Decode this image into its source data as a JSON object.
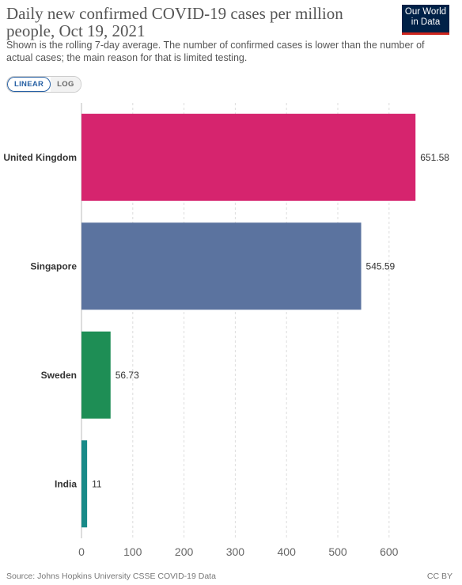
{
  "header": {
    "title": "Daily new confirmed COVID-19 cases per million people, Oct 19, 2021",
    "subtitle": "Shown is the rolling 7-day average. The number of confirmed cases is lower than the number of actual cases; the main reason for that is limited testing.",
    "logo_line1": "Our World",
    "logo_line2": "in Data"
  },
  "controls": {
    "linear_label": "LINEAR",
    "log_label": "LOG",
    "selected": "linear"
  },
  "chart_data": {
    "type": "bar",
    "orientation": "horizontal",
    "categories": [
      "United Kingdom",
      "Singapore",
      "Sweden",
      "India"
    ],
    "values": [
      651.58,
      545.59,
      56.73,
      11
    ],
    "value_labels": [
      "651.58",
      "545.59",
      "56.73",
      "11"
    ],
    "colors": [
      "#d6246e",
      "#5b739f",
      "#1e8e55",
      "#188a88"
    ],
    "xlim": [
      0,
      650
    ],
    "xticks": [
      0,
      100,
      200,
      300,
      400,
      500,
      600
    ],
    "grid": true
  },
  "footer": {
    "source": "Source: Johns Hopkins University CSSE COVID-19 Data",
    "license": "CC BY"
  }
}
